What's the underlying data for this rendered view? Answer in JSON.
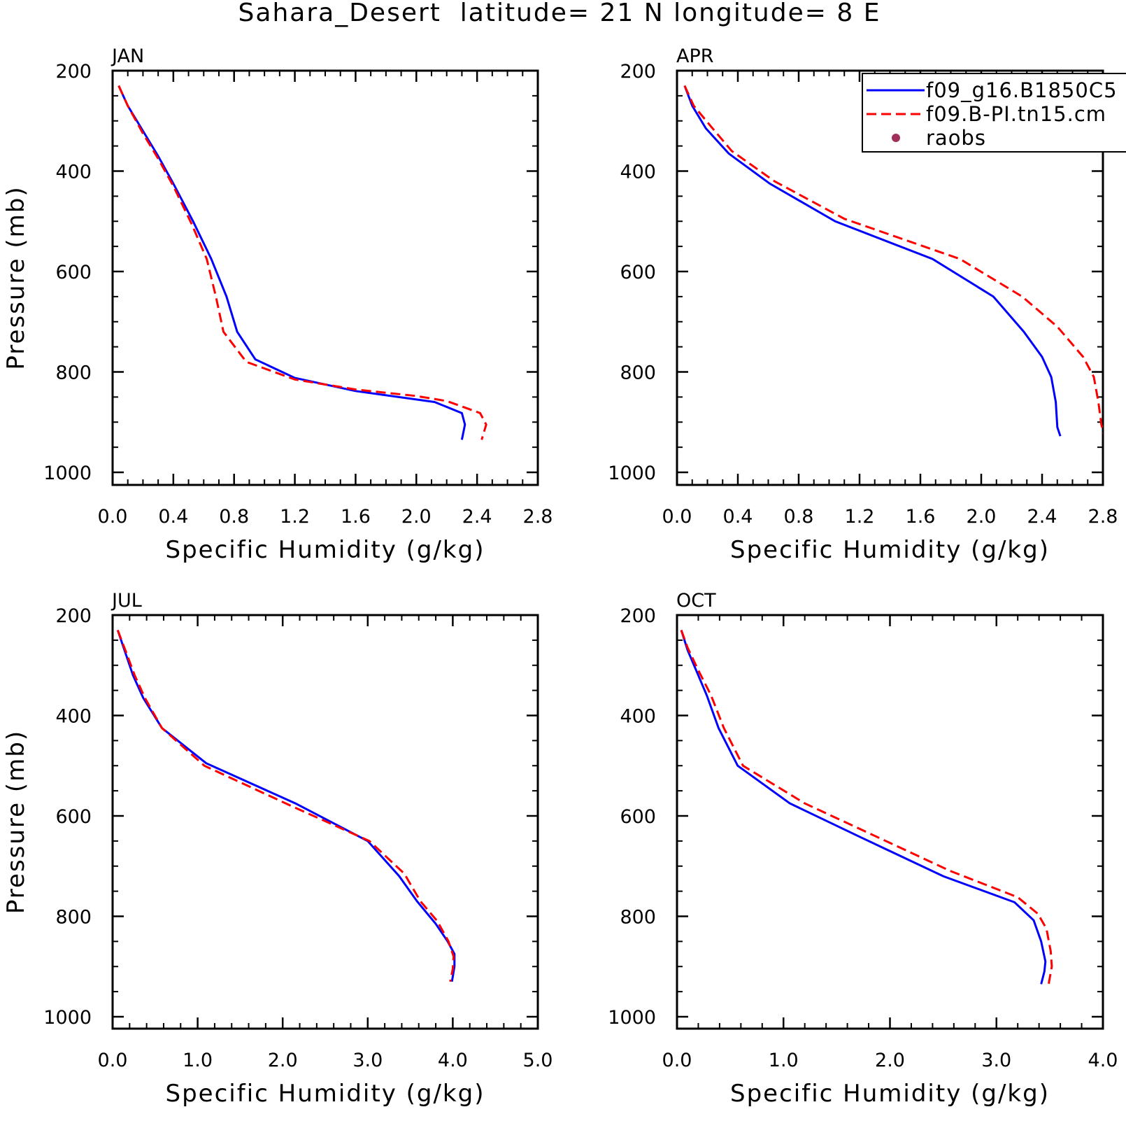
{
  "figure": {
    "title": "Sahara_Desert  latitude= 21 N longitude= 8 E"
  },
  "legend": {
    "entries": [
      {
        "label": "f09_g16.B1850C5",
        "color": "#0000ff",
        "style": "solid"
      },
      {
        "label": "f09.B-PI.tn15.cm",
        "color": "#ff0000",
        "style": "dashed"
      },
      {
        "label": "raobs",
        "color": "#a0305a",
        "style": "marker"
      }
    ]
  },
  "chart_data": [
    {
      "type": "line",
      "title": "JAN",
      "xlabel": "Specific Humidity (g/kg)",
      "ylabel": "Pressure (mb)",
      "xlim": [
        0.0,
        2.8
      ],
      "ylim": [
        1000,
        200
      ],
      "xticks": [
        "0.0",
        "0.4",
        "0.8",
        "1.2",
        "1.6",
        "2.0",
        "2.4",
        "2.8"
      ],
      "yticks": [
        "200",
        "400",
        "600",
        "800",
        "1000"
      ],
      "series": [
        {
          "name": "f09_g16.B1850C5",
          "color": "#0000ff",
          "dash": "solid",
          "points": [
            [
              0.04,
              230
            ],
            [
              0.1,
              270
            ],
            [
              0.2,
              320
            ],
            [
              0.3,
              370
            ],
            [
              0.4,
              425
            ],
            [
              0.53,
              500
            ],
            [
              0.65,
              575
            ],
            [
              0.75,
              650
            ],
            [
              0.82,
              720
            ],
            [
              0.94,
              775
            ],
            [
              1.2,
              812
            ],
            [
              1.6,
              838
            ],
            [
              2.12,
              860
            ],
            [
              2.3,
              882
            ],
            [
              2.32,
              905
            ],
            [
              2.3,
              935
            ]
          ]
        },
        {
          "name": "f09.B-PI.tn15.cm",
          "color": "#ff0000",
          "dash": "dashed",
          "points": [
            [
              0.04,
              230
            ],
            [
              0.1,
              270
            ],
            [
              0.2,
              325
            ],
            [
              0.3,
              375
            ],
            [
              0.4,
              430
            ],
            [
              0.52,
              505
            ],
            [
              0.62,
              575
            ],
            [
              0.68,
              650
            ],
            [
              0.73,
              720
            ],
            [
              0.88,
              780
            ],
            [
              1.2,
              815
            ],
            [
              1.6,
              835
            ],
            [
              2.0,
              848
            ],
            [
              2.2,
              858
            ],
            [
              2.42,
              882
            ],
            [
              2.46,
              905
            ],
            [
              2.43,
              935
            ]
          ]
        }
      ]
    },
    {
      "type": "line",
      "title": "APR",
      "xlabel": "Specific Humidity (g/kg)",
      "ylabel": "",
      "xlim": [
        0.0,
        2.8
      ],
      "ylim": [
        1000,
        200
      ],
      "xticks": [
        "0.0",
        "0.4",
        "0.8",
        "1.2",
        "1.6",
        "2.0",
        "2.4",
        "2.8"
      ],
      "yticks": [
        "200",
        "400",
        "600",
        "800",
        "1000"
      ],
      "series": [
        {
          "name": "f09_g16.B1850C5",
          "color": "#0000ff",
          "dash": "solid",
          "points": [
            [
              0.05,
              230
            ],
            [
              0.1,
              270
            ],
            [
              0.19,
              315
            ],
            [
              0.34,
              365
            ],
            [
              0.61,
              425
            ],
            [
              1.04,
              500
            ],
            [
              1.68,
              575
            ],
            [
              2.08,
              650
            ],
            [
              2.28,
              720
            ],
            [
              2.4,
              770
            ],
            [
              2.46,
              810
            ],
            [
              2.49,
              860
            ],
            [
              2.5,
              910
            ],
            [
              2.52,
              928
            ]
          ]
        },
        {
          "name": "f09.B-PI.tn15.cm",
          "color": "#ff0000",
          "dash": "dashed",
          "points": [
            [
              0.05,
              230
            ],
            [
              0.11,
              270
            ],
            [
              0.22,
              310
            ],
            [
              0.36,
              360
            ],
            [
              0.64,
              420
            ],
            [
              1.1,
              495
            ],
            [
              1.86,
              575
            ],
            [
              2.27,
              650
            ],
            [
              2.5,
              710
            ],
            [
              2.67,
              770
            ],
            [
              2.74,
              810
            ],
            [
              2.77,
              860
            ],
            [
              2.79,
              905
            ],
            [
              2.81,
              928
            ]
          ]
        }
      ]
    },
    {
      "type": "line",
      "title": "JUL",
      "xlabel": "Specific Humidity (g/kg)",
      "ylabel": "Pressure (mb)",
      "xlim": [
        0.0,
        5.0
      ],
      "ylim": [
        1000,
        200
      ],
      "xticks": [
        "0.0",
        "1.0",
        "2.0",
        "3.0",
        "4.0",
        "5.0"
      ],
      "yticks": [
        "200",
        "400",
        "600",
        "800",
        "1000"
      ],
      "series": [
        {
          "name": "f09_g16.B1850C5",
          "color": "#0000ff",
          "dash": "solid",
          "points": [
            [
              0.06,
              230
            ],
            [
              0.14,
              270
            ],
            [
              0.24,
              320
            ],
            [
              0.36,
              365
            ],
            [
              0.58,
              425
            ],
            [
              1.1,
              495
            ],
            [
              2.15,
              575
            ],
            [
              3.0,
              650
            ],
            [
              3.37,
              720
            ],
            [
              3.58,
              770
            ],
            [
              3.8,
              815
            ],
            [
              3.94,
              850
            ],
            [
              4.02,
              875
            ],
            [
              4.02,
              900
            ],
            [
              3.99,
              930
            ]
          ]
        },
        {
          "name": "f09.B-PI.tn15.cm",
          "color": "#ff0000",
          "dash": "dashed",
          "points": [
            [
              0.06,
              230
            ],
            [
              0.15,
              270
            ],
            [
              0.26,
              320
            ],
            [
              0.38,
              365
            ],
            [
              0.58,
              425
            ],
            [
              1.08,
              500
            ],
            [
              2.1,
              580
            ],
            [
              3.02,
              650
            ],
            [
              3.43,
              715
            ],
            [
              3.62,
              770
            ],
            [
              3.82,
              810
            ],
            [
              3.95,
              850
            ],
            [
              4.01,
              880
            ],
            [
              4.0,
              905
            ],
            [
              3.97,
              930
            ]
          ]
        }
      ]
    },
    {
      "type": "line",
      "title": "OCT",
      "xlabel": "Specific Humidity (g/kg)",
      "ylabel": "",
      "xlim": [
        0.0,
        4.0
      ],
      "ylim": [
        1000,
        200
      ],
      "xticks": [
        "0.0",
        "1.0",
        "2.0",
        "3.0",
        "4.0"
      ],
      "yticks": [
        "200",
        "400",
        "600",
        "800",
        "1000"
      ],
      "series": [
        {
          "name": "f09_g16.B1850C5",
          "color": "#0000ff",
          "dash": "solid",
          "points": [
            [
              0.04,
              230
            ],
            [
              0.1,
              270
            ],
            [
              0.18,
              310
            ],
            [
              0.28,
              360
            ],
            [
              0.39,
              425
            ],
            [
              0.57,
              500
            ],
            [
              1.06,
              575
            ],
            [
              1.7,
              640
            ],
            [
              2.5,
              720
            ],
            [
              3.17,
              772
            ],
            [
              3.35,
              808
            ],
            [
              3.42,
              850
            ],
            [
              3.46,
              890
            ],
            [
              3.45,
              910
            ],
            [
              3.42,
              935
            ]
          ]
        },
        {
          "name": "f09.B-PI.tn15.cm",
          "color": "#ff0000",
          "dash": "dashed",
          "points": [
            [
              0.04,
              230
            ],
            [
              0.1,
              265
            ],
            [
              0.2,
              310
            ],
            [
              0.32,
              360
            ],
            [
              0.44,
              425
            ],
            [
              0.62,
              500
            ],
            [
              1.2,
              575
            ],
            [
              1.86,
              640
            ],
            [
              2.57,
              710
            ],
            [
              3.2,
              762
            ],
            [
              3.39,
              795
            ],
            [
              3.47,
              825
            ],
            [
              3.51,
              870
            ],
            [
              3.52,
              900
            ],
            [
              3.49,
              935
            ]
          ]
        }
      ]
    }
  ]
}
